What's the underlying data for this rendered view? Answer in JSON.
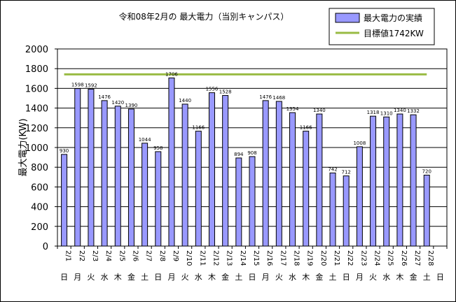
{
  "chart_data": {
    "type": "bar",
    "title": "令和08年2月の 最大電力（当別キャンパス）",
    "ylabel": "最大電力(KW)",
    "xlabel": "",
    "ylim": [
      0,
      2000
    ],
    "yticks": [
      0,
      200,
      400,
      600,
      800,
      1000,
      1200,
      1400,
      1600,
      1800,
      2000
    ],
    "grid": true,
    "legend_position": "top-right",
    "categories": [
      "2/1",
      "2/2",
      "2/3",
      "2/4",
      "2/5",
      "2/6",
      "2/7",
      "2/8",
      "2/9",
      "2/10",
      "2/11",
      "2/12",
      "2/13",
      "2/14",
      "2/15",
      "2/16",
      "2/17",
      "2/18",
      "2/19",
      "2/20",
      "2/21",
      "2/22",
      "2/23",
      "2/24",
      "2/25",
      "2/26",
      "2/27",
      "2/28",
      ""
    ],
    "weekdays": [
      "日",
      "月",
      "火",
      "水",
      "木",
      "金",
      "土",
      "日",
      "月",
      "火",
      "水",
      "木",
      "金",
      "土",
      "日",
      "月",
      "火",
      "水",
      "木",
      "金",
      "土",
      "日",
      "月",
      "火",
      "水",
      "木",
      "金",
      "土",
      "日"
    ],
    "series": [
      {
        "name": "最大電力の実績",
        "type": "bar",
        "color": "#9999ff",
        "values": [
          930,
          1598,
          1592,
          1476,
          1420,
          1390,
          1044,
          958,
          1706,
          1440,
          1166,
          1556,
          1528,
          894,
          908,
          1476,
          1468,
          1354,
          1166,
          1340,
          742,
          712,
          1008,
          1318,
          1310,
          1340,
          1332,
          720,
          null
        ]
      },
      {
        "name": "目標値1742KW",
        "type": "line",
        "color": "#99bb44",
        "value": 1742
      }
    ]
  }
}
